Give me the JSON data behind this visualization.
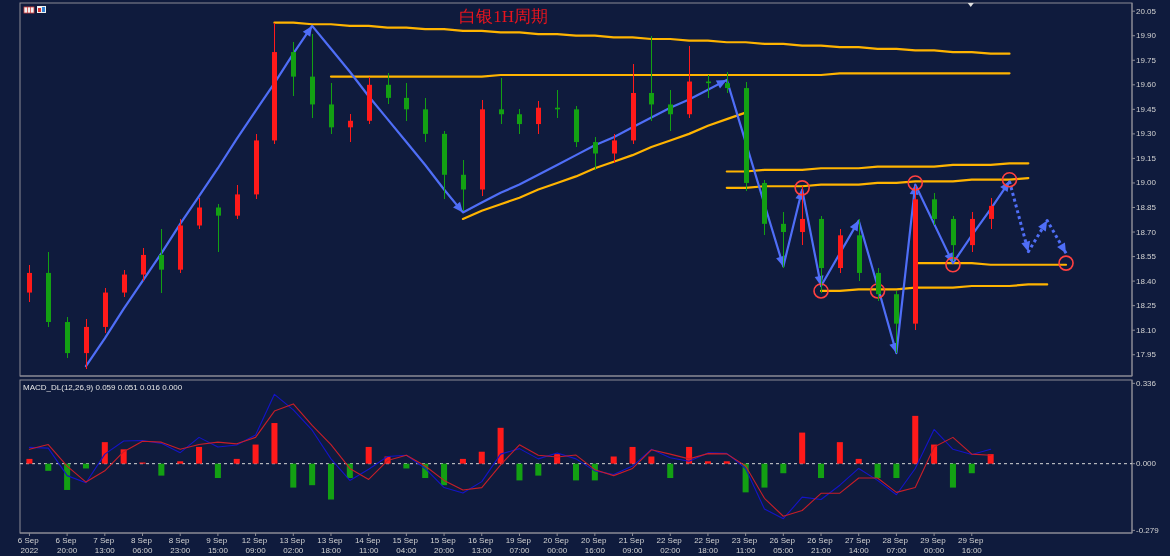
{
  "chart_data": [
    {
      "type": "candlestick",
      "title": "白银1H周期",
      "ylim": [
        17.82,
        20.1
      ],
      "yticks": [
        20.05,
        {
          "value": 19.9,
          "label": "19.90"
        },
        19.75,
        {
          "value": 19.6,
          "label": "19.60"
        },
        19.45,
        {
          "value": 19.3,
          "label": "19.30"
        },
        19.15,
        {
          "value": 19,
          "label": "19.00"
        },
        18.85,
        {
          "value": 18.7,
          "label": "18.70"
        },
        18.55,
        {
          "value": 18.4,
          "label": "18.40"
        },
        18.25,
        {
          "value": 18.1,
          "label": "18.10"
        },
        17.95
      ],
      "categories": [
        null,
        null,
        null,
        null,
        null,
        null,
        null,
        null,
        null,
        null,
        null,
        null,
        null,
        null,
        null,
        null,
        null,
        null,
        null,
        null,
        null,
        null,
        null,
        null,
        null,
        null,
        null,
        null,
        null,
        null,
        null,
        null,
        null,
        null,
        null,
        null,
        null,
        null,
        null,
        null,
        null,
        null,
        null,
        null,
        null,
        null,
        null,
        null,
        null,
        null,
        null,
        null,
        null,
        null,
        null,
        null,
        null,
        null,
        null
      ],
      "ohlc": [
        [
          18.33,
          18.5,
          18.27,
          18.45
        ],
        [
          18.45,
          18.58,
          18.12,
          18.15
        ],
        [
          18.15,
          18.18,
          17.93,
          17.96
        ],
        [
          17.96,
          18.17,
          17.86,
          18.12
        ],
        [
          18.12,
          18.36,
          18.08,
          18.33
        ],
        [
          18.33,
          18.47,
          18.3,
          18.44
        ],
        [
          18.44,
          18.6,
          18.4,
          18.56
        ],
        [
          18.56,
          18.72,
          18.33,
          18.47
        ],
        [
          18.47,
          18.78,
          18.45,
          18.74
        ],
        [
          18.74,
          18.91,
          18.72,
          18.85
        ],
        [
          18.85,
          18.87,
          18.58,
          18.8
        ],
        [
          18.8,
          18.99,
          18.78,
          18.93
        ],
        [
          18.93,
          19.3,
          18.9,
          19.26
        ],
        [
          19.26,
          19.98,
          19.24,
          19.8
        ],
        [
          19.8,
          19.86,
          19.53,
          19.65
        ],
        [
          19.65,
          19.91,
          19.4,
          19.48
        ],
        [
          19.48,
          19.61,
          19.3,
          19.34
        ],
        [
          19.34,
          19.42,
          19.25,
          19.38
        ],
        [
          19.38,
          19.65,
          19.36,
          19.6
        ],
        [
          19.6,
          19.67,
          19.48,
          19.52
        ],
        [
          19.52,
          19.61,
          19.38,
          19.45
        ],
        [
          19.45,
          19.52,
          19.25,
          19.3
        ],
        [
          19.3,
          19.32,
          18.9,
          19.05
        ],
        [
          19.05,
          19.14,
          18.83,
          18.96
        ],
        [
          18.96,
          19.51,
          18.92,
          19.45
        ],
        [
          19.45,
          19.64,
          19.36,
          19.42
        ],
        [
          19.42,
          19.45,
          19.3,
          19.36
        ],
        [
          19.36,
          19.5,
          19.3,
          19.46
        ],
        [
          19.46,
          19.57,
          19.4,
          19.45
        ],
        [
          19.45,
          19.47,
          19.22,
          19.25
        ],
        [
          19.25,
          19.28,
          19.08,
          19.18
        ],
        [
          19.18,
          19.3,
          19.12,
          19.26
        ],
        [
          19.26,
          19.73,
          19.24,
          19.55
        ],
        [
          19.55,
          19.9,
          19.38,
          19.48
        ],
        [
          19.48,
          19.57,
          19.32,
          19.42
        ],
        [
          19.42,
          19.84,
          19.4,
          19.62
        ],
        [
          19.62,
          19.66,
          19.52,
          19.61
        ],
        [
          19.61,
          19.68,
          19.55,
          19.58
        ],
        [
          19.58,
          19.62,
          18.95,
          19.0
        ],
        [
          19.0,
          19.02,
          18.68,
          18.75
        ],
        [
          18.75,
          18.82,
          18.48,
          18.7
        ],
        [
          18.7,
          18.98,
          18.62,
          18.78
        ],
        [
          18.78,
          18.8,
          18.33,
          18.48
        ],
        [
          18.48,
          18.72,
          18.45,
          18.68
        ],
        [
          18.68,
          18.78,
          18.4,
          18.45
        ],
        [
          18.45,
          18.48,
          18.28,
          18.32
        ],
        [
          18.32,
          18.34,
          17.96,
          18.14
        ],
        [
          18.14,
          18.98,
          18.1,
          18.9
        ],
        [
          18.9,
          18.94,
          18.74,
          18.78
        ],
        [
          18.78,
          18.8,
          18.52,
          18.62
        ],
        [
          18.62,
          18.82,
          18.58,
          18.78
        ],
        [
          18.78,
          18.91,
          18.72,
          18.86
        ],
        null,
        null,
        null,
        null,
        null,
        null,
        null
      ],
      "series": [
        {
          "type": "line",
          "color": "#ffb400",
          "values": [
            null,
            null,
            null,
            null,
            null,
            null,
            null,
            null,
            null,
            null,
            null,
            null,
            null,
            19.98,
            19.98,
            19.97,
            19.97,
            19.96,
            19.96,
            19.95,
            19.95,
            19.94,
            19.94,
            19.93,
            19.93,
            19.92,
            19.92,
            19.91,
            19.91,
            19.9,
            19.9,
            19.89,
            19.89,
            19.88,
            19.88,
            19.87,
            19.87,
            19.86,
            19.86,
            19.85,
            19.85,
            19.84,
            19.84,
            19.83,
            19.83,
            19.82,
            19.82,
            19.81,
            19.81,
            19.8,
            19.8,
            19.79,
            19.79,
            null,
            null,
            null,
            null,
            null,
            null
          ]
        },
        {
          "type": "line",
          "color": "#ffb400",
          "values": [
            null,
            null,
            null,
            null,
            null,
            null,
            null,
            null,
            null,
            null,
            null,
            null,
            null,
            null,
            null,
            null,
            19.65,
            19.65,
            19.65,
            19.65,
            19.65,
            19.65,
            19.65,
            19.65,
            19.65,
            19.66,
            19.66,
            19.66,
            19.66,
            19.66,
            19.66,
            19.66,
            19.66,
            19.66,
            19.66,
            19.66,
            19.66,
            19.66,
            19.66,
            19.66,
            19.66,
            19.66,
            19.66,
            19.67,
            19.67,
            19.67,
            19.67,
            19.67,
            19.67,
            19.67,
            19.67,
            19.67,
            19.67,
            null,
            null,
            null,
            null,
            null,
            null
          ]
        },
        {
          "type": "line",
          "color": "#ffb400",
          "values": [
            null,
            null,
            null,
            null,
            null,
            null,
            null,
            null,
            null,
            null,
            null,
            null,
            null,
            null,
            null,
            null,
            null,
            null,
            null,
            null,
            null,
            null,
            null,
            18.78,
            18.83,
            18.87,
            18.91,
            18.96,
            19,
            19.04,
            19.09,
            19.13,
            19.17,
            19.22,
            19.26,
            19.3,
            19.35,
            19.39,
            19.43,
            null,
            null,
            null,
            null,
            null,
            null,
            null,
            null,
            null,
            null,
            null,
            null,
            null,
            null,
            null,
            null,
            null,
            null,
            null,
            null
          ]
        },
        {
          "type": "line",
          "color": "#ffb400",
          "values": [
            null,
            null,
            null,
            null,
            null,
            null,
            null,
            null,
            null,
            null,
            null,
            null,
            null,
            null,
            null,
            null,
            null,
            null,
            null,
            null,
            null,
            null,
            null,
            null,
            null,
            null,
            null,
            null,
            null,
            null,
            null,
            null,
            null,
            null,
            null,
            null,
            null,
            19.07,
            19.07,
            19.08,
            19.08,
            19.08,
            19.09,
            19.09,
            19.09,
            19.1,
            19.1,
            19.1,
            19.1,
            19.11,
            19.11,
            19.11,
            19.12,
            19.12,
            null,
            null,
            null,
            null,
            null
          ]
        },
        {
          "type": "line",
          "color": "#ffb400",
          "values": [
            null,
            null,
            null,
            null,
            null,
            null,
            null,
            null,
            null,
            null,
            null,
            null,
            null,
            null,
            null,
            null,
            null,
            null,
            null,
            null,
            null,
            null,
            null,
            null,
            null,
            null,
            null,
            null,
            null,
            null,
            null,
            null,
            null,
            null,
            null,
            null,
            null,
            18.97,
            18.97,
            18.98,
            18.98,
            18.98,
            18.99,
            18.99,
            18.99,
            19,
            19,
            19.01,
            19.01,
            19.01,
            19.02,
            19.02,
            19.02,
            19.03,
            null,
            null,
            null,
            null,
            null
          ]
        },
        {
          "type": "line",
          "color": "#ffb400",
          "values": [
            null,
            null,
            null,
            null,
            null,
            null,
            null,
            null,
            null,
            null,
            null,
            null,
            null,
            null,
            null,
            null,
            null,
            null,
            null,
            null,
            null,
            null,
            null,
            null,
            null,
            null,
            null,
            null,
            null,
            null,
            null,
            null,
            null,
            null,
            null,
            null,
            null,
            null,
            null,
            null,
            null,
            null,
            null,
            null,
            null,
            null,
            null,
            18.51,
            18.51,
            18.51,
            18.51,
            18.5,
            18.5,
            18.5,
            18.5,
            18.5,
            null,
            null,
            null
          ]
        },
        {
          "type": "line",
          "color": "#ffb400",
          "values": [
            null,
            null,
            null,
            null,
            null,
            null,
            null,
            null,
            null,
            null,
            null,
            null,
            null,
            null,
            null,
            null,
            null,
            null,
            null,
            null,
            null,
            null,
            null,
            null,
            null,
            null,
            null,
            null,
            null,
            null,
            null,
            null,
            null,
            null,
            null,
            null,
            null,
            null,
            null,
            null,
            null,
            null,
            18.34,
            18.34,
            18.35,
            18.35,
            18.35,
            18.36,
            18.36,
            18.36,
            18.37,
            18.37,
            18.37,
            18.38,
            18.38,
            null,
            null,
            null,
            null
          ]
        },
        {
          "type": "line",
          "color": "#4f6ef7",
          "values": [
            null,
            null,
            null,
            17.88,
            18.05,
            18.23,
            18.4,
            18.57,
            18.75,
            18.92,
            19.09,
            19.27,
            19.44,
            19.61,
            19.79,
            19.96,
            19.82,
            19.68,
            19.53,
            19.39,
            19.25,
            19.11,
            18.96,
            18.82,
            18.88,
            18.94,
            18.99,
            19.05,
            19.11,
            19.17,
            19.23,
            19.28,
            19.34,
            19.4,
            19.46,
            19.51,
            19.57,
            19.63,
            19.25,
            18.87,
            18.49,
            18.96,
            18.37,
            18.57,
            18.77,
            18.37,
            17.96,
            18.99,
            18.75,
            18.51,
            18.68,
            18.84,
            19.01,
            null,
            null,
            null,
            null,
            null,
            null
          ]
        },
        {
          "type": "line",
          "color": "#4f6ef7",
          "line_style": "dotted",
          "values": [
            null,
            null,
            null,
            null,
            null,
            null,
            null,
            null,
            null,
            null,
            null,
            null,
            null,
            null,
            null,
            null,
            null,
            null,
            null,
            null,
            null,
            null,
            null,
            null,
            null,
            null,
            null,
            null,
            null,
            null,
            null,
            null,
            null,
            null,
            null,
            null,
            null,
            null,
            null,
            null,
            null,
            null,
            null,
            null,
            null,
            null,
            null,
            null,
            null,
            null,
            null,
            null,
            19.01,
            18.58,
            18.77,
            18.57,
            null,
            null,
            null
          ]
        },
        {
          "type": "scatter",
          "color": "#ff4040",
          "marker": "circle",
          "values": [
            null,
            null,
            null,
            null,
            null,
            null,
            null,
            null,
            null,
            null,
            null,
            null,
            null,
            null,
            null,
            null,
            null,
            null,
            null,
            null,
            null,
            null,
            null,
            null,
            null,
            null,
            null,
            null,
            null,
            null,
            null,
            null,
            null,
            null,
            null,
            null,
            null,
            null,
            null,
            null,
            null,
            18.97,
            18.34,
            null,
            null,
            18.34,
            null,
            19,
            null,
            18.5,
            null,
            null,
            19.02,
            null,
            null,
            18.51,
            null,
            null,
            null
          ]
        }
      ]
    },
    {
      "type": "bar",
      "title": "MACD_DL(12,26,9) 0.059 0.051 0.016 0.000",
      "ylim": [
        -0.29,
        0.35
      ],
      "yticks": [
        0.336,
        {
          "value": 0,
          "label": "0.000"
        },
        -0.279
      ],
      "categories": [
        "6 Sep 2022",
        null,
        "6 Sep 20:00",
        null,
        "7 Sep 13:00",
        null,
        "8 Sep 06:00",
        null,
        "8 Sep 23:00",
        null,
        "9 Sep 15:00",
        null,
        "12 Sep 09:00",
        null,
        "13 Sep 02:00",
        null,
        "13 Sep 18:00",
        null,
        "14 Sep 11:00",
        null,
        "15 Sep 04:00",
        null,
        "15 Sep 20:00",
        null,
        "16 Sep 13:00",
        null,
        "19 Sep 07:00",
        null,
        "20 Sep 00:00",
        null,
        "20 Sep 16:00",
        null,
        "21 Sep 09:00",
        null,
        "22 Sep 02:00",
        null,
        "22 Sep 18:00",
        null,
        "23 Sep 11:00",
        null,
        "26 Sep 05:00",
        null,
        "26 Sep 21:00",
        null,
        "27 Sep 14:00",
        null,
        "28 Sep 07:00",
        null,
        "29 Sep 00:00",
        null,
        "29 Sep 16:00",
        null,
        null,
        null,
        null,
        null,
        null,
        null,
        null
      ],
      "ref_lines": [
        {
          "axis": "y",
          "value": 0,
          "line_style": "dotted",
          "color": "#d8d8d8"
        }
      ],
      "series": [
        {
          "values": [
            0.02,
            -0.03,
            -0.11,
            -0.02,
            0.09,
            0.06,
            0.005,
            -0.05,
            0.01,
            0.07,
            -0.06,
            0.02,
            0.08,
            0.17,
            -0.1,
            -0.09,
            -0.15,
            -0.06,
            0.07,
            0.03,
            -0.02,
            -0.06,
            -0.09,
            0.02,
            0.05,
            0.15,
            -0.07,
            -0.05,
            0.04,
            -0.07,
            -0.07,
            0.03,
            0.07,
            0.03,
            -0.06,
            0.07,
            0.01,
            0.01,
            -0.12,
            -0.1,
            -0.04,
            0.13,
            -0.06,
            0.09,
            0.02,
            -0.06,
            -0.06,
            0.2,
            0.08,
            -0.1,
            -0.04,
            0.04,
            null,
            null,
            null,
            null,
            null,
            null,
            null
          ],
          "colors": [
            "#ff1a1a",
            "#13a013",
            "#13a013",
            "#13a013",
            "#ff1a1a",
            "#ff1a1a",
            "#ff1a1a",
            "#13a013",
            "#ff1a1a",
            "#ff1a1a",
            "#13a013",
            "#ff1a1a",
            "#ff1a1a",
            "#ff1a1a",
            "#13a013",
            "#13a013",
            "#13a013",
            "#13a013",
            "#ff1a1a",
            "#ff1a1a",
            "#13a013",
            "#13a013",
            "#13a013",
            "#ff1a1a",
            "#ff1a1a",
            "#ff1a1a",
            "#13a013",
            "#13a013",
            "#ff1a1a",
            "#13a013",
            "#13a013",
            "#ff1a1a",
            "#ff1a1a",
            "#ff1a1a",
            "#13a013",
            "#ff1a1a",
            "#ff1a1a",
            "#ff1a1a",
            "#13a013",
            "#13a013",
            "#13a013",
            "#ff1a1a",
            "#13a013",
            "#ff1a1a",
            "#ff1a1a",
            "#13a013",
            "#13a013",
            "#ff1a1a",
            "#ff1a1a",
            "#13a013",
            "#13a013",
            "#ff1a1a",
            null,
            null,
            null,
            null,
            null,
            null,
            null
          ]
        },
        {
          "type": "line",
          "color": "#1414c8",
          "values": [
            0.068,
            0.065,
            -0.05,
            -0.08,
            0.04,
            0.095,
            0.097,
            0.085,
            0.046,
            0.11,
            0.07,
            0.078,
            0.12,
            0.29,
            0.225,
            0.14,
            0.02,
            -0.07,
            -0.023,
            0.03,
            0.035,
            -0.02,
            -0.1,
            -0.123,
            -0.075,
            0.04,
            0.063,
            0.02,
            0.045,
            0.02,
            -0.03,
            -0.045,
            -0.01,
            0.06,
            0.025,
            0.01,
            0.045,
            0.043,
            -0.02,
            -0.19,
            -0.23,
            -0.14,
            -0.15,
            -0.09,
            -0.02,
            -0.07,
            -0.13,
            -0.02,
            0.143,
            0.06,
            0.038,
            0.06,
            null,
            null,
            null,
            null,
            null,
            null,
            null
          ]
        },
        {
          "type": "line",
          "color": "#c81e28",
          "values": [
            0.06,
            0.08,
            -0.01,
            -0.077,
            -0.03,
            0.05,
            0.094,
            0.09,
            0.06,
            0.08,
            0.09,
            0.083,
            0.11,
            0.22,
            0.25,
            0.16,
            0.08,
            -0.02,
            -0.066,
            0.013,
            0.035,
            -0.01,
            -0.07,
            -0.11,
            -0.1,
            -0.005,
            0.079,
            0.035,
            0.028,
            0.036,
            -0.025,
            -0.05,
            -0.02,
            0.058,
            0.04,
            0.02,
            0.042,
            0.041,
            -0.01,
            -0.145,
            -0.22,
            -0.196,
            -0.124,
            -0.123,
            -0.06,
            -0.06,
            -0.12,
            -0.1,
            0.07,
            0.11,
            0.04,
            0.035,
            null,
            null,
            null,
            null,
            null,
            null,
            null
          ]
        }
      ]
    }
  ]
}
